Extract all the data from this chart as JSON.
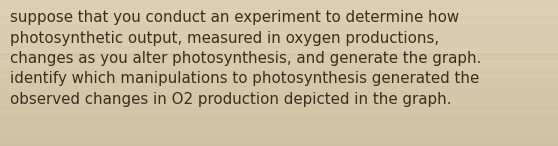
{
  "text": "suppose that you conduct an experiment to determine how\nphotosynthetic output, measured in oxygen productions,\nchanges as you alter photosynthesis, and generate the graph.\nidentify which manipulations to photosynthesis generated the\nobserved changes in O2 production depicted in the graph.",
  "bg_color": "#d8ccb2",
  "bg_color_top": "#ddd2b8",
  "bg_color_bottom": "#cfc3a5",
  "stripe_color": "#c8bc9e",
  "text_color": "#3a2e1c",
  "font_size": 10.8,
  "fig_width": 5.58,
  "fig_height": 1.46
}
